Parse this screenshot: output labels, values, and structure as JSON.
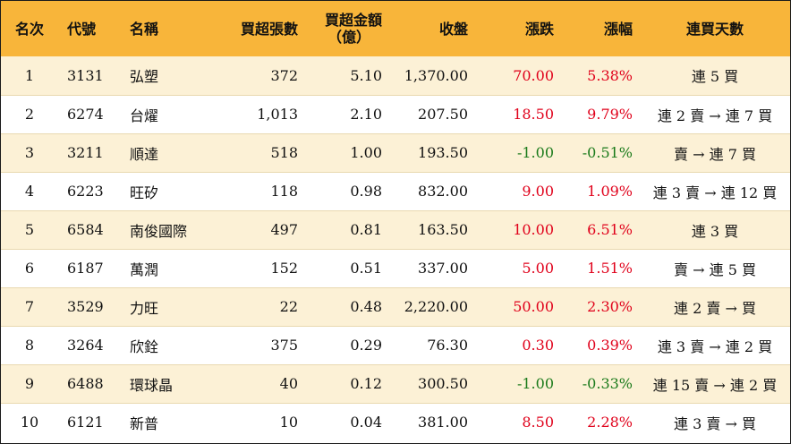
{
  "headers": {
    "rank": "名次",
    "code": "代號",
    "name": "名稱",
    "net_lots": "買超張數",
    "net_amount_line1": "買超金額",
    "net_amount_line2": "（億）",
    "close": "收盤",
    "change": "漲跌",
    "pct": "漲幅",
    "streak": "連買天數"
  },
  "colors": {
    "header_bg": "#f8b53a",
    "odd_row_bg": "#fcf1d6",
    "up": "#e0001a",
    "down": "#1a7a1a"
  },
  "rows": [
    {
      "rank": "1",
      "code": "3131",
      "name": "弘塑",
      "net_lots": "372",
      "net_amount": "5.10",
      "close": "1,370.00",
      "change": "70.00",
      "pct": "5.38%",
      "dir": "up",
      "streak": "連 5 買"
    },
    {
      "rank": "2",
      "code": "6274",
      "name": "台燿",
      "net_lots": "1,013",
      "net_amount": "2.10",
      "close": "207.50",
      "change": "18.50",
      "pct": "9.79%",
      "dir": "up",
      "streak": "連 2 賣 → 連 7 買"
    },
    {
      "rank": "3",
      "code": "3211",
      "name": "順達",
      "net_lots": "518",
      "net_amount": "1.00",
      "close": "193.50",
      "change": "-1.00",
      "pct": "-0.51%",
      "dir": "down",
      "streak": "賣 → 連 7 買"
    },
    {
      "rank": "4",
      "code": "6223",
      "name": "旺矽",
      "net_lots": "118",
      "net_amount": "0.98",
      "close": "832.00",
      "change": "9.00",
      "pct": "1.09%",
      "dir": "up",
      "streak": "連 3 賣 → 連 12 買"
    },
    {
      "rank": "5",
      "code": "6584",
      "name": "南俊國際",
      "net_lots": "497",
      "net_amount": "0.81",
      "close": "163.50",
      "change": "10.00",
      "pct": "6.51%",
      "dir": "up",
      "streak": "連 3 買"
    },
    {
      "rank": "6",
      "code": "6187",
      "name": "萬潤",
      "net_lots": "152",
      "net_amount": "0.51",
      "close": "337.00",
      "change": "5.00",
      "pct": "1.51%",
      "dir": "up",
      "streak": "賣 → 連 5 買"
    },
    {
      "rank": "7",
      "code": "3529",
      "name": "力旺",
      "net_lots": "22",
      "net_amount": "0.48",
      "close": "2,220.00",
      "change": "50.00",
      "pct": "2.30%",
      "dir": "up",
      "streak": "連 2 賣 → 買"
    },
    {
      "rank": "8",
      "code": "3264",
      "name": "欣銓",
      "net_lots": "375",
      "net_amount": "0.29",
      "close": "76.30",
      "change": "0.30",
      "pct": "0.39%",
      "dir": "up",
      "streak": "連 3 賣 → 連 2 買"
    },
    {
      "rank": "9",
      "code": "6488",
      "name": "環球晶",
      "net_lots": "40",
      "net_amount": "0.12",
      "close": "300.50",
      "change": "-1.00",
      "pct": "-0.33%",
      "dir": "down",
      "streak": "連 15 賣 → 連 2 買"
    },
    {
      "rank": "10",
      "code": "6121",
      "name": "新普",
      "net_lots": "10",
      "net_amount": "0.04",
      "close": "381.00",
      "change": "8.50",
      "pct": "2.28%",
      "dir": "up",
      "streak": "連 3 賣 → 買"
    }
  ]
}
